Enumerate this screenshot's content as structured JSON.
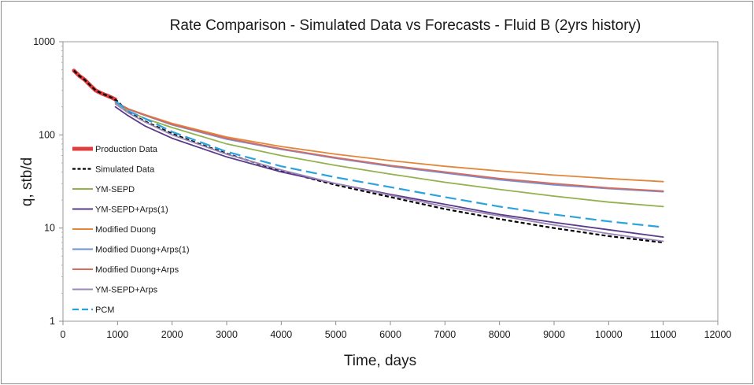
{
  "chart_data": {
    "type": "line",
    "title": "Rate Comparison - Simulated Data vs Forecasts - Fluid B (2yrs history)",
    "xlabel": "Time, days",
    "ylabel": "q, stb/d",
    "xlim": [
      0,
      12000
    ],
    "ylim": [
      1,
      1000
    ],
    "yscale": "log",
    "x_ticks": [
      "0",
      "1000",
      "2000",
      "3000",
      "4000",
      "5000",
      "6000",
      "7000",
      "8000",
      "9000",
      "10000",
      "11000",
      "12000"
    ],
    "y_ticks": [
      "1",
      "10",
      "100",
      "1000"
    ],
    "grid": false,
    "legend_position": "left",
    "series": [
      {
        "name": "Production Data",
        "color": "#e03c3c",
        "dash": "solid",
        "width": 5,
        "x": [
          200,
          250,
          300,
          350,
          400,
          500,
          600,
          700,
          800,
          900,
          960
        ],
        "y": [
          490,
          460,
          430,
          410,
          390,
          340,
          300,
          280,
          265,
          250,
          240
        ]
      },
      {
        "name": "Simulated Data",
        "color": "#000000",
        "dash": "dashed",
        "width": 2.2,
        "x": [
          200,
          300,
          400,
          500,
          600,
          700,
          800,
          900,
          1000,
          1200,
          1500,
          2000,
          2500,
          3000,
          4000,
          5000,
          6000,
          7000,
          8000,
          9000,
          10000,
          11000
        ],
        "y": [
          490,
          430,
          390,
          340,
          300,
          280,
          265,
          250,
          230,
          175,
          140,
          103,
          80,
          63,
          41,
          29,
          21.5,
          16,
          12.5,
          10,
          8.2,
          7
        ]
      },
      {
        "name": "YM-SEPD",
        "color": "#93b14e",
        "dash": "solid",
        "width": 1.8,
        "x": [
          960,
          1200,
          1500,
          2000,
          3000,
          4000,
          5000,
          6000,
          7000,
          8000,
          9000,
          10000,
          11000
        ],
        "y": [
          225,
          180,
          150,
          120,
          80,
          60,
          47,
          38,
          31,
          26,
          22,
          19,
          17
        ]
      },
      {
        "name": "YM-SEPD+Arps(1)",
        "color": "#5a3b8a",
        "dash": "solid",
        "width": 1.8,
        "x": [
          960,
          1200,
          1500,
          2000,
          3000,
          4000,
          5000,
          6000,
          7000,
          8000,
          9000,
          10000,
          11000
        ],
        "y": [
          200,
          160,
          125,
          92,
          58,
          40,
          30,
          23,
          18,
          14,
          11.5,
          9.6,
          8
        ]
      },
      {
        "name": "Modified Duong",
        "color": "#e2873a",
        "dash": "solid",
        "width": 1.8,
        "x": [
          960,
          1200,
          1500,
          2000,
          3000,
          4000,
          5000,
          6000,
          7000,
          8000,
          9000,
          10000,
          11000
        ],
        "y": [
          225,
          190,
          165,
          133,
          95,
          75,
          62,
          53,
          46,
          41,
          37,
          34,
          31.5
        ]
      },
      {
        "name": "Modified Duong+Arps(1)",
        "color": "#6f8fd6",
        "dash": "solid",
        "width": 1.8,
        "x": [
          960,
          1200,
          1500,
          2000,
          3000,
          4000,
          5000,
          6000,
          7000,
          8000,
          9000,
          10000,
          11000
        ],
        "y": [
          225,
          188,
          162,
          128,
          90,
          70,
          56,
          46,
          39,
          33,
          29,
          26.5,
          24.5
        ]
      },
      {
        "name": "Modified Duong+Arps",
        "color": "#d96a5c",
        "dash": "solid",
        "width": 1.8,
        "x": [
          960,
          1200,
          1500,
          2000,
          3000,
          4000,
          5000,
          6000,
          7000,
          8000,
          9000,
          10000,
          11000
        ],
        "y": [
          225,
          189,
          163,
          130,
          92,
          71,
          57,
          47,
          40,
          34,
          30,
          27,
          25
        ]
      },
      {
        "name": "YM-SEPD+Arps",
        "color": "#9d86b8",
        "dash": "solid",
        "width": 1.8,
        "x": [
          960,
          1200,
          1500,
          2000,
          3000,
          4000,
          5000,
          6000,
          7000,
          8000,
          9000,
          10000,
          11000
        ],
        "y": [
          215,
          172,
          138,
          100,
          62,
          42,
          30,
          22.5,
          17,
          13.5,
          10.8,
          8.7,
          7.2
        ]
      },
      {
        "name": "PCM",
        "color": "#2aa3dc",
        "dash": "longdash",
        "width": 2.2,
        "x": [
          960,
          1200,
          1500,
          2000,
          3000,
          4000,
          5000,
          6000,
          7000,
          8000,
          9000,
          10000,
          11000
        ],
        "y": [
          230,
          180,
          150,
          108,
          66,
          46,
          35,
          27.5,
          21.5,
          17,
          14,
          11.8,
          10.2
        ]
      }
    ]
  }
}
